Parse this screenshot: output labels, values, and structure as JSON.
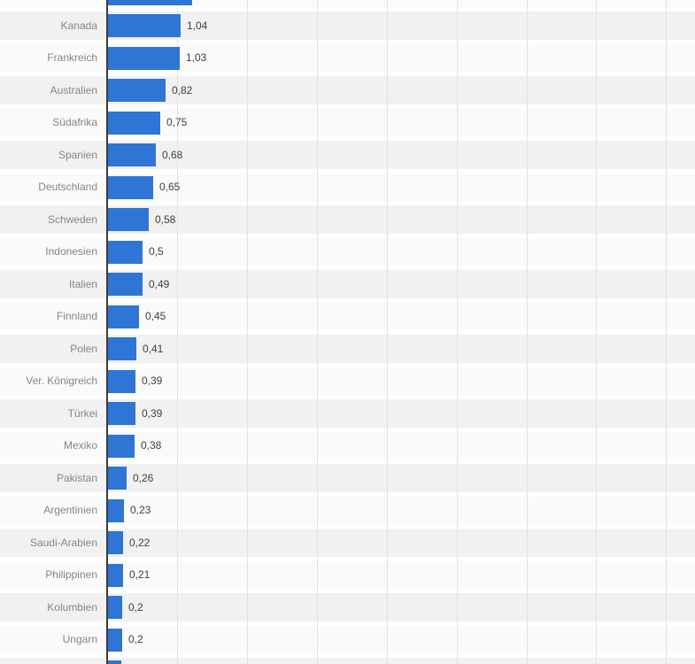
{
  "chart_data": {
    "type": "bar",
    "orientation": "horizontal",
    "title": "",
    "categories": [
      "Kanada",
      "Frankreich",
      "Australien",
      "Südafrika",
      "Spanien",
      "Deutschland",
      "Schweden",
      "Indonesien",
      "Italien",
      "Finnland",
      "Polen",
      "Ver. Königreich",
      "Türkei",
      "Mexiko",
      "Pakistan",
      "Argentinien",
      "Saudi-Arabien",
      "Philippinen",
      "Kolumbien",
      "Ungarn"
    ],
    "values": [
      1.04,
      1.03,
      0.82,
      0.75,
      0.68,
      0.65,
      0.58,
      0.5,
      0.49,
      0.45,
      0.41,
      0.39,
      0.39,
      0.38,
      0.26,
      0.23,
      0.22,
      0.21,
      0.2,
      0.2
    ],
    "value_labels": [
      "1,04",
      "1,03",
      "0,82",
      "0,75",
      "0,68",
      "0,65",
      "0,58",
      "0,5",
      "0,49",
      "0,45",
      "0,41",
      "0,39",
      "0,39",
      "0,38",
      "0,26",
      "0,23",
      "0,22",
      "0,21",
      "0,2",
      "0,2"
    ],
    "partial_bars": {
      "top_value_estimate": 1.2,
      "bottom_value_estimate": 0.19
    },
    "x_axis": {
      "visible_range": [
        0,
        8.4
      ],
      "gridline_interval": 1,
      "gridline_count": 8,
      "tick_labels_visible": false
    },
    "legend": "none",
    "grid": "vertical-only",
    "colors": {
      "bar": "#2e75d5",
      "band_dark": "#f1f1f1",
      "band_light": "#fafafa",
      "gridline": "#e2e2e2",
      "axis": "#3c3c3c",
      "category_label": "#858585",
      "value_label": "#404040",
      "background": "#ffffff"
    }
  }
}
